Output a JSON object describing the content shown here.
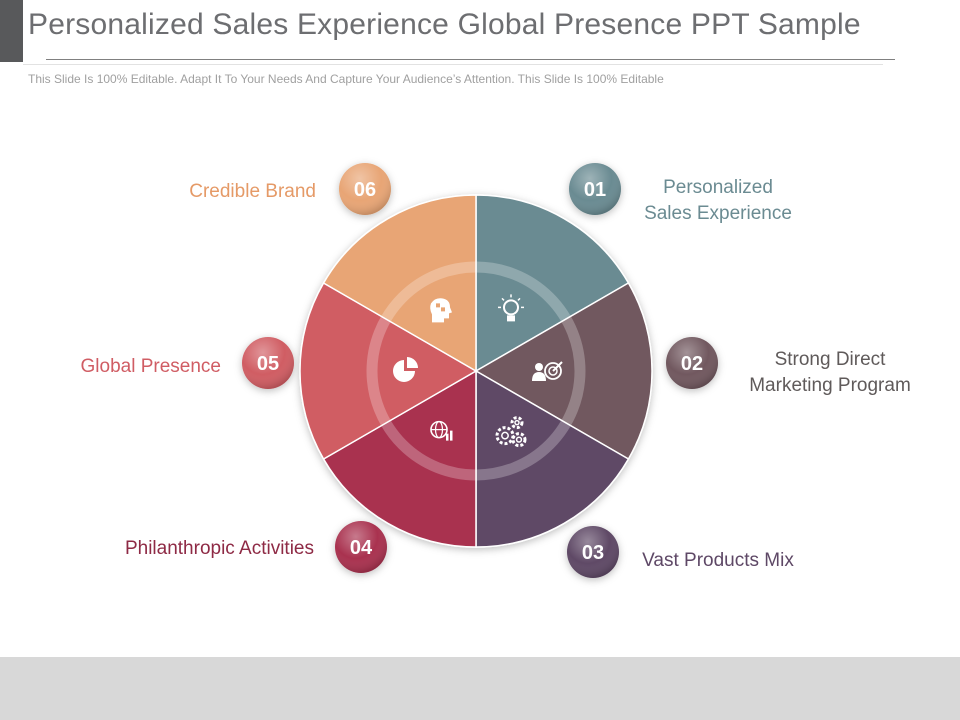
{
  "slide": {
    "title": "Personalized Sales Experience Global Presence PPT Sample",
    "subtitle": "This Slide Is 100% Editable. Adapt It To Your Needs And Capture Your Audience’s Attention. This Slide Is 100% Editable"
  },
  "segments": [
    {
      "number": "01",
      "label_lines": [
        "Personalized",
        "Sales Experience"
      ],
      "color": "#6b8b92",
      "label_color": "#6b8b92",
      "icon": "lightbulb-icon"
    },
    {
      "number": "02",
      "label_lines": [
        "Strong Direct",
        "Marketing Program"
      ],
      "color": "#71585f",
      "label_color": "#5f5a5a",
      "icon": "business-target-icon"
    },
    {
      "number": "03",
      "label_lines": [
        "Vast Products Mix"
      ],
      "color": "#5e4866",
      "label_color": "#5e4866",
      "icon": "gears-icon"
    },
    {
      "number": "04",
      "label_lines": [
        "Philanthropic Activities"
      ],
      "color": "#a93350",
      "label_color": "#8e2a45",
      "icon": "globe-chart-icon"
    },
    {
      "number": "05",
      "label_lines": [
        "Global Presence"
      ],
      "color": "#d05d64",
      "label_color": "#d05d64",
      "icon": "pie-chart-icon"
    },
    {
      "number": "06",
      "label_lines": [
        "Credible Brand"
      ],
      "color": "#e8a574",
      "label_color": "#e59a67",
      "icon": "head-puzzle-icon"
    }
  ]
}
